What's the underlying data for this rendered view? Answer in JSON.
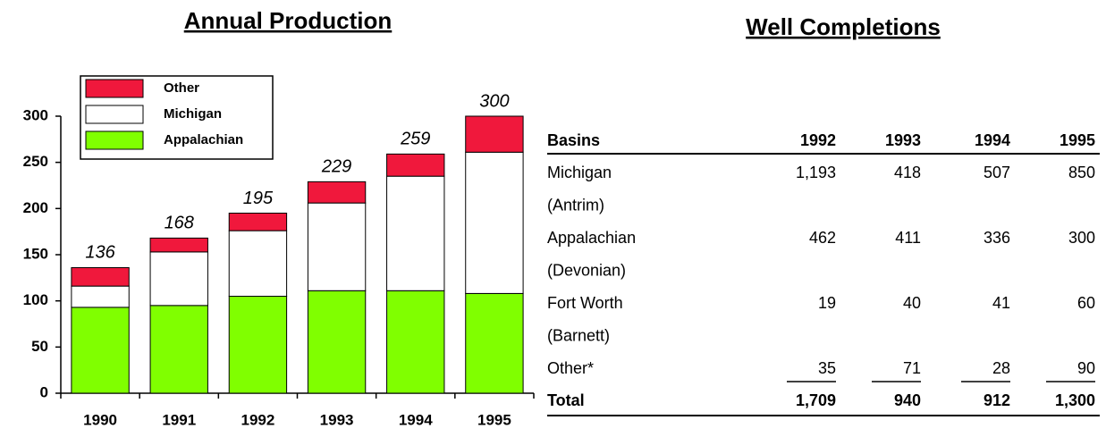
{
  "chart_data": {
    "type": "stacked_bar",
    "title": "Annual Production",
    "categories": [
      "1990",
      "1991",
      "1992",
      "1993",
      "1994",
      "1995"
    ],
    "series": [
      {
        "name": "Appalachian",
        "color": "#80ff00",
        "values": [
          93,
          95,
          105,
          111,
          111,
          108
        ]
      },
      {
        "name": "Michigan",
        "color": "#ffffff",
        "values": [
          23,
          58,
          71,
          95,
          124,
          153
        ]
      },
      {
        "name": "Other",
        "color": "#f0183c",
        "values": [
          20,
          15,
          19,
          23,
          24,
          39
        ]
      }
    ],
    "totals": [
      136,
      168,
      195,
      229,
      259,
      300
    ],
    "ylim": [
      0,
      300
    ],
    "yticks": [
      0,
      50,
      100,
      150,
      200,
      250,
      300
    ],
    "grid": false,
    "legend": "top-left"
  },
  "table": {
    "title": "Well Completions",
    "header": [
      "Basins",
      "1992",
      "1993",
      "1994",
      "1995"
    ],
    "rows": [
      [
        "Michigan",
        "1,193",
        "418",
        "507",
        "850"
      ],
      [
        "(Antrim)"
      ],
      [
        "Appalachian",
        "462",
        "411",
        "336",
        "300"
      ],
      [
        "(Devonian)"
      ],
      [
        "Fort Worth",
        "19",
        "40",
        "41",
        "60"
      ],
      [
        "(Barnett)"
      ],
      [
        "Other*",
        "35",
        "71",
        "28",
        "90"
      ]
    ],
    "total": [
      "Total",
      "1,709",
      "940",
      "912",
      "1,300"
    ]
  }
}
